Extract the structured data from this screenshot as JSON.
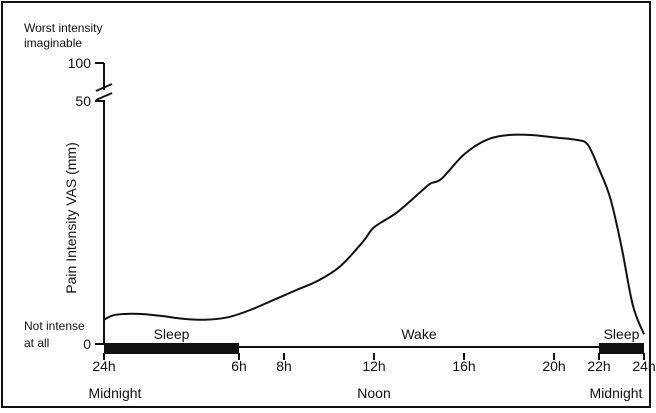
{
  "chart_data": {
    "type": "line",
    "ylabel": "Pain Intensity VAS (mm)",
    "y_ticks": [
      {
        "value": 0,
        "label": "0"
      },
      {
        "value": 50,
        "label": "50"
      },
      {
        "value": 100,
        "label": "100"
      }
    ],
    "y_axis_break": true,
    "y_top_annotation": [
      "Worst intensity",
      "imaginable"
    ],
    "y_bottom_annotation": [
      "Not intense",
      "at all"
    ],
    "x_ticks": [
      {
        "hour": 0,
        "label": "24h"
      },
      {
        "hour": 6,
        "label": "6h"
      },
      {
        "hour": 8,
        "label": "8h"
      },
      {
        "hour": 12,
        "label": "12h"
      },
      {
        "hour": 16,
        "label": "16h"
      },
      {
        "hour": 20,
        "label": "20h"
      },
      {
        "hour": 22,
        "label": "22h"
      },
      {
        "hour": 24,
        "label": "24h"
      }
    ],
    "x_sublabels": [
      {
        "hour": 0,
        "label": "Midnight"
      },
      {
        "hour": 12,
        "label": "Noon"
      },
      {
        "hour": 24,
        "label": "Midnight"
      }
    ],
    "periods": [
      {
        "label": "Sleep",
        "start": 0,
        "end": 6,
        "bar": true
      },
      {
        "label": "Wake",
        "start": 6,
        "end": 22,
        "bar": false
      },
      {
        "label": "Sleep",
        "start": 22,
        "end": 24,
        "bar": true
      }
    ],
    "series": [
      {
        "x": [
          0,
          0.5,
          1.5,
          2.5,
          3.5,
          4.5,
          5.5,
          6.5,
          7.5,
          8.5,
          9.5,
          10.5,
          11.5,
          12,
          13,
          14,
          14.5,
          15,
          16,
          17,
          18,
          19,
          20,
          21,
          21.5,
          22,
          22.5,
          23,
          23.5,
          24
        ],
        "y": [
          5,
          6,
          6.2,
          5.8,
          5.2,
          5,
          5.5,
          7,
          9,
          11,
          13,
          16,
          21,
          24,
          27,
          31,
          33,
          34,
          39,
          42,
          43,
          43,
          42.5,
          42,
          41,
          36,
          30,
          20,
          8,
          2
        ]
      }
    ]
  }
}
